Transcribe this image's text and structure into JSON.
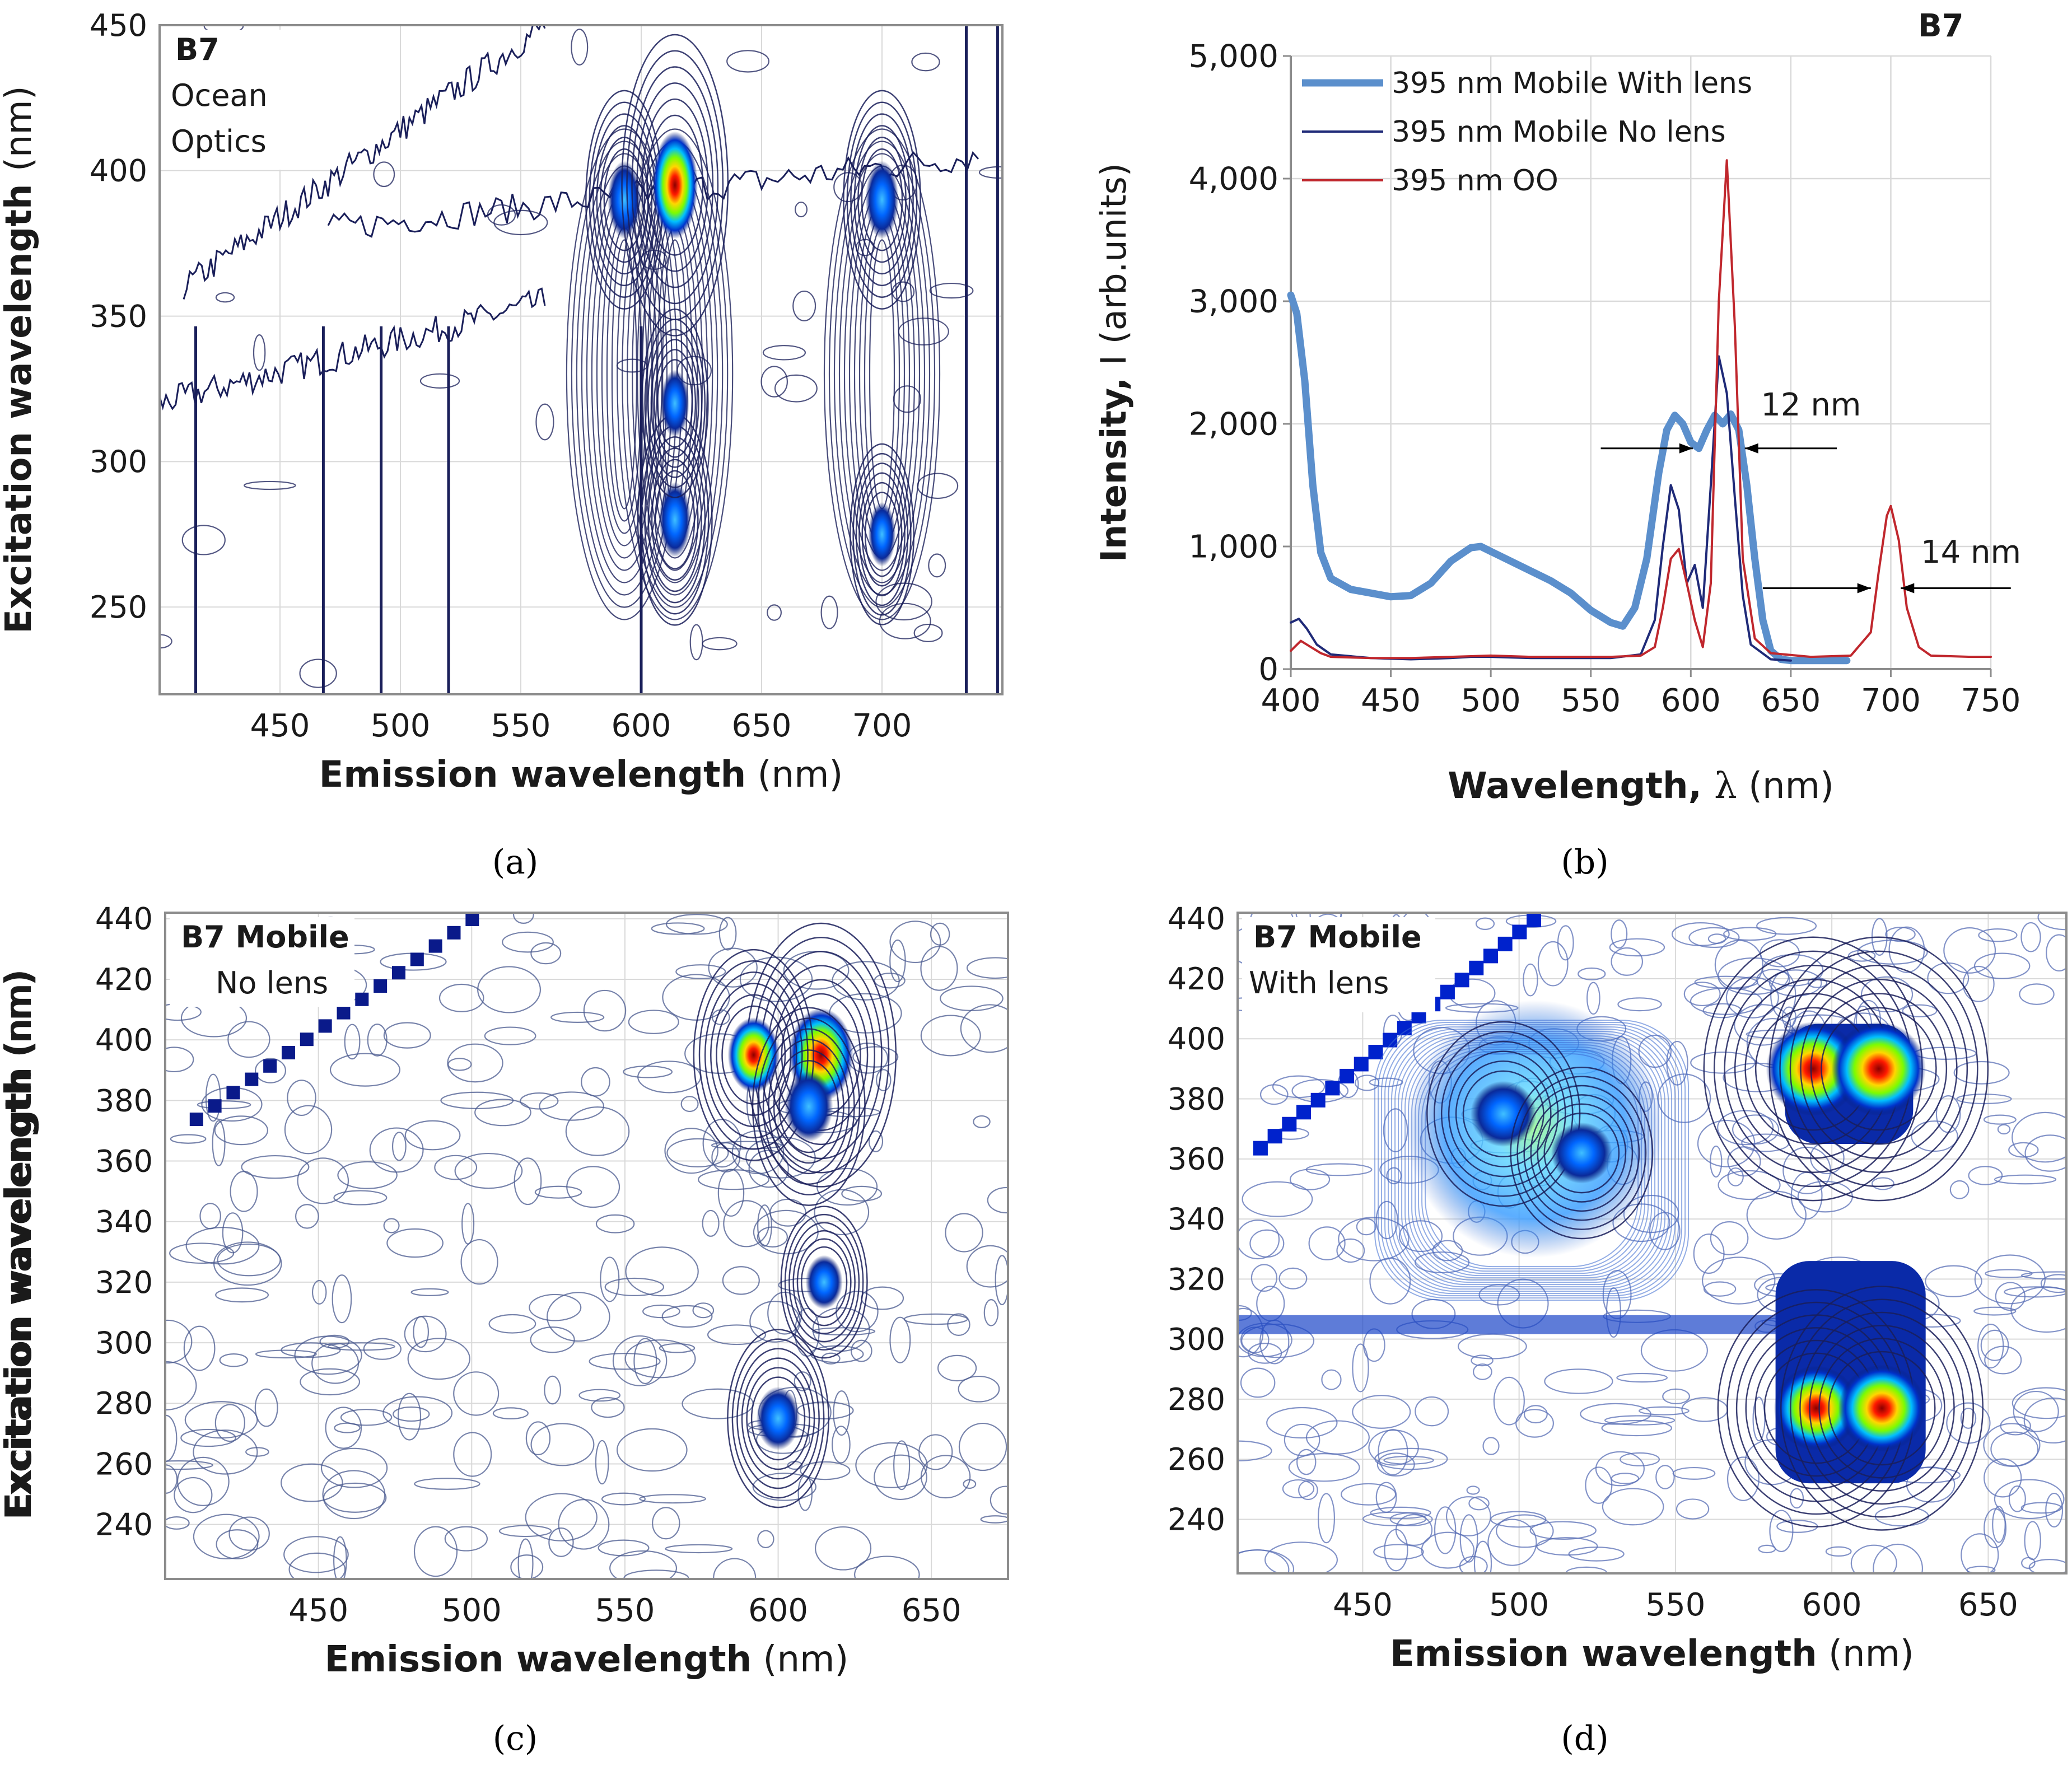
{
  "figure": {
    "panel_labels": [
      "(a)",
      "(b)",
      "(c)",
      "(d)"
    ]
  },
  "colors": {
    "axis": "#8c8c8c",
    "grid": "#d9d9d9",
    "contour_dark": "#1a1f5a",
    "contour_light": "#4a5a8f",
    "series_with_lens": "#5b8fcc",
    "series_no_lens": "#1f2a78",
    "series_oo": "#c0272d"
  },
  "chart_data": [
    {
      "panel": "a",
      "type": "heatmap",
      "title": "",
      "inset": [
        "B7",
        "Ocean",
        "Optics"
      ],
      "xlabel_bold": "Emission wavelength",
      "xlabel_unit": "(nm)",
      "ylabel_bold": "Excitation wavelength",
      "ylabel_unit": "(nm)",
      "xlim": [
        400,
        750
      ],
      "ylim": [
        220,
        450
      ],
      "xticks": [
        450,
        500,
        550,
        600,
        650,
        700
      ],
      "yticks": [
        250,
        300,
        350,
        400,
        450
      ],
      "xtick_labels": [
        "450",
        "500",
        "550",
        "600",
        "650",
        "700"
      ],
      "ytick_labels": [
        "250",
        "300",
        "350",
        "400",
        "450"
      ],
      "peaks": [
        {
          "x": 593,
          "y": 390,
          "intensity": 0.45
        },
        {
          "x": 614,
          "y": 395,
          "intensity": 1.0
        },
        {
          "x": 614,
          "y": 280,
          "intensity": 0.4
        },
        {
          "x": 614,
          "y": 320,
          "intensity": 0.25
        },
        {
          "x": 700,
          "y": 390,
          "intensity": 0.45
        },
        {
          "x": 700,
          "y": 275,
          "intensity": 0.2
        }
      ]
    },
    {
      "panel": "b",
      "type": "line",
      "title": "B7",
      "xlabel_bold": "Wavelength, ",
      "xlabel_symbol": "λ",
      "xlabel_unit": "(nm)",
      "ylabel_bold": "Intensity,",
      "ylabel_unit": "I (arb.units)",
      "xlim": [
        400,
        750
      ],
      "ylim": [
        0,
        5000
      ],
      "xticks": [
        400,
        450,
        500,
        550,
        600,
        650,
        700,
        750
      ],
      "yticks": [
        0,
        1000,
        2000,
        3000,
        4000,
        5000
      ],
      "xtick_labels": [
        "400",
        "450",
        "500",
        "550",
        "600",
        "650",
        "700",
        "750"
      ],
      "ytick_labels": [
        "0",
        "1,000",
        "2,000",
        "3,000",
        "4,000",
        "5,000"
      ],
      "grid": true,
      "legend_position": "top-left",
      "series": [
        {
          "name": "395 nm Mobile With lens",
          "x": [
            400,
            403,
            407,
            411,
            415,
            420,
            430,
            440,
            450,
            460,
            470,
            480,
            490,
            495,
            500,
            510,
            520,
            530,
            540,
            550,
            560,
            566,
            572,
            578,
            584,
            588,
            592,
            596,
            600,
            604,
            608,
            612,
            616,
            620,
            624,
            628,
            632,
            636,
            640,
            645,
            650,
            660,
            670,
            678
          ],
          "values": [
            3050,
            2900,
            2350,
            1500,
            950,
            740,
            650,
            620,
            590,
            600,
            700,
            880,
            990,
            1000,
            960,
            880,
            800,
            720,
            620,
            480,
            380,
            350,
            500,
            900,
            1600,
            1950,
            2070,
            2000,
            1850,
            1800,
            1950,
            2070,
            2000,
            2080,
            1950,
            1500,
            900,
            400,
            150,
            80,
            70,
            70,
            70,
            70
          ]
        },
        {
          "name": "395 nm Mobile No lens",
          "x": [
            400,
            404,
            408,
            413,
            420,
            440,
            460,
            480,
            490,
            500,
            520,
            540,
            560,
            575,
            582,
            586,
            590,
            594,
            598,
            602,
            606,
            610,
            614,
            618,
            622,
            626,
            630,
            640,
            650
          ],
          "values": [
            380,
            410,
            330,
            200,
            120,
            90,
            80,
            90,
            100,
            100,
            90,
            90,
            90,
            120,
            400,
            1000,
            1500,
            1300,
            700,
            850,
            500,
            1500,
            2550,
            2250,
            1400,
            600,
            200,
            80,
            70
          ]
        },
        {
          "name": "395 nm OO",
          "x": [
            400,
            405,
            410,
            415,
            420,
            440,
            460,
            480,
            500,
            520,
            540,
            560,
            575,
            582,
            586,
            590,
            594,
            598,
            602,
            606,
            610,
            614,
            618,
            622,
            626,
            632,
            640,
            660,
            680,
            690,
            694,
            698,
            700,
            704,
            708,
            714,
            720,
            740,
            750
          ],
          "values": [
            150,
            230,
            180,
            130,
            100,
            90,
            90,
            100,
            110,
            100,
            100,
            100,
            110,
            180,
            500,
            900,
            980,
            700,
            400,
            180,
            700,
            3000,
            4150,
            2800,
            900,
            250,
            130,
            100,
            110,
            300,
            800,
            1250,
            1330,
            1050,
            500,
            180,
            110,
            100,
            100
          ]
        }
      ],
      "annotations": [
        {
          "text": "12 nm",
          "x": 635,
          "y": 2150
        },
        {
          "text": "14 nm",
          "x": 715,
          "y": 950
        }
      ]
    },
    {
      "panel": "c",
      "type": "heatmap",
      "title": "",
      "inset": [
        "B7 Mobile",
        "No lens"
      ],
      "xlabel_bold": "Emission wavelength",
      "xlabel_unit": "(nm)",
      "ylabel_bold": "Excitation wavelength",
      "ylabel_unit": "(nm)",
      "xlim": [
        400,
        675
      ],
      "ylim": [
        222,
        442
      ],
      "xticks": [
        450,
        500,
        550,
        600,
        650
      ],
      "yticks": [
        240,
        260,
        280,
        300,
        320,
        340,
        360,
        380,
        400,
        420,
        440
      ],
      "xtick_labels": [
        "450",
        "500",
        "550",
        "600",
        "650"
      ],
      "ytick_labels": [
        "240",
        "260",
        "280",
        "300",
        "320",
        "340",
        "360",
        "380",
        "400",
        "420",
        "440"
      ],
      "peaks": [
        {
          "x": 614,
          "y": 395,
          "intensity": 1.0
        },
        {
          "x": 592,
          "y": 395,
          "intensity": 0.6
        },
        {
          "x": 610,
          "y": 378,
          "intensity": 0.5
        },
        {
          "x": 600,
          "y": 275,
          "intensity": 0.35
        },
        {
          "x": 615,
          "y": 320,
          "intensity": 0.15
        }
      ]
    },
    {
      "panel": "d",
      "type": "heatmap",
      "title": "",
      "inset": [
        "B7 Mobile",
        "With lens"
      ],
      "xlabel_bold": "Emission wavelength",
      "xlabel_unit": "(nm)",
      "ylabel_bold": "Excitation wavelength",
      "ylabel_unit": "(nm)",
      "xlim": [
        410,
        675
      ],
      "ylim": [
        222,
        442
      ],
      "xticks": [
        450,
        500,
        550,
        600,
        650
      ],
      "yticks": [
        240,
        260,
        280,
        300,
        320,
        340,
        360,
        380,
        400,
        420,
        440
      ],
      "xtick_labels": [
        "450",
        "500",
        "550",
        "600",
        "650"
      ],
      "ytick_labels": [
        "240",
        "260",
        "280",
        "300",
        "320",
        "340",
        "360",
        "380",
        "400",
        "420",
        "440"
      ],
      "peaks": [
        {
          "x": 594,
          "y": 390,
          "intensity": 1.0
        },
        {
          "x": 615,
          "y": 390,
          "intensity": 1.0
        },
        {
          "x": 595,
          "y": 277,
          "intensity": 0.8
        },
        {
          "x": 616,
          "y": 277,
          "intensity": 0.85
        },
        {
          "x": 495,
          "y": 375,
          "intensity": 0.4
        },
        {
          "x": 520,
          "y": 362,
          "intensity": 0.3
        }
      ]
    }
  ]
}
